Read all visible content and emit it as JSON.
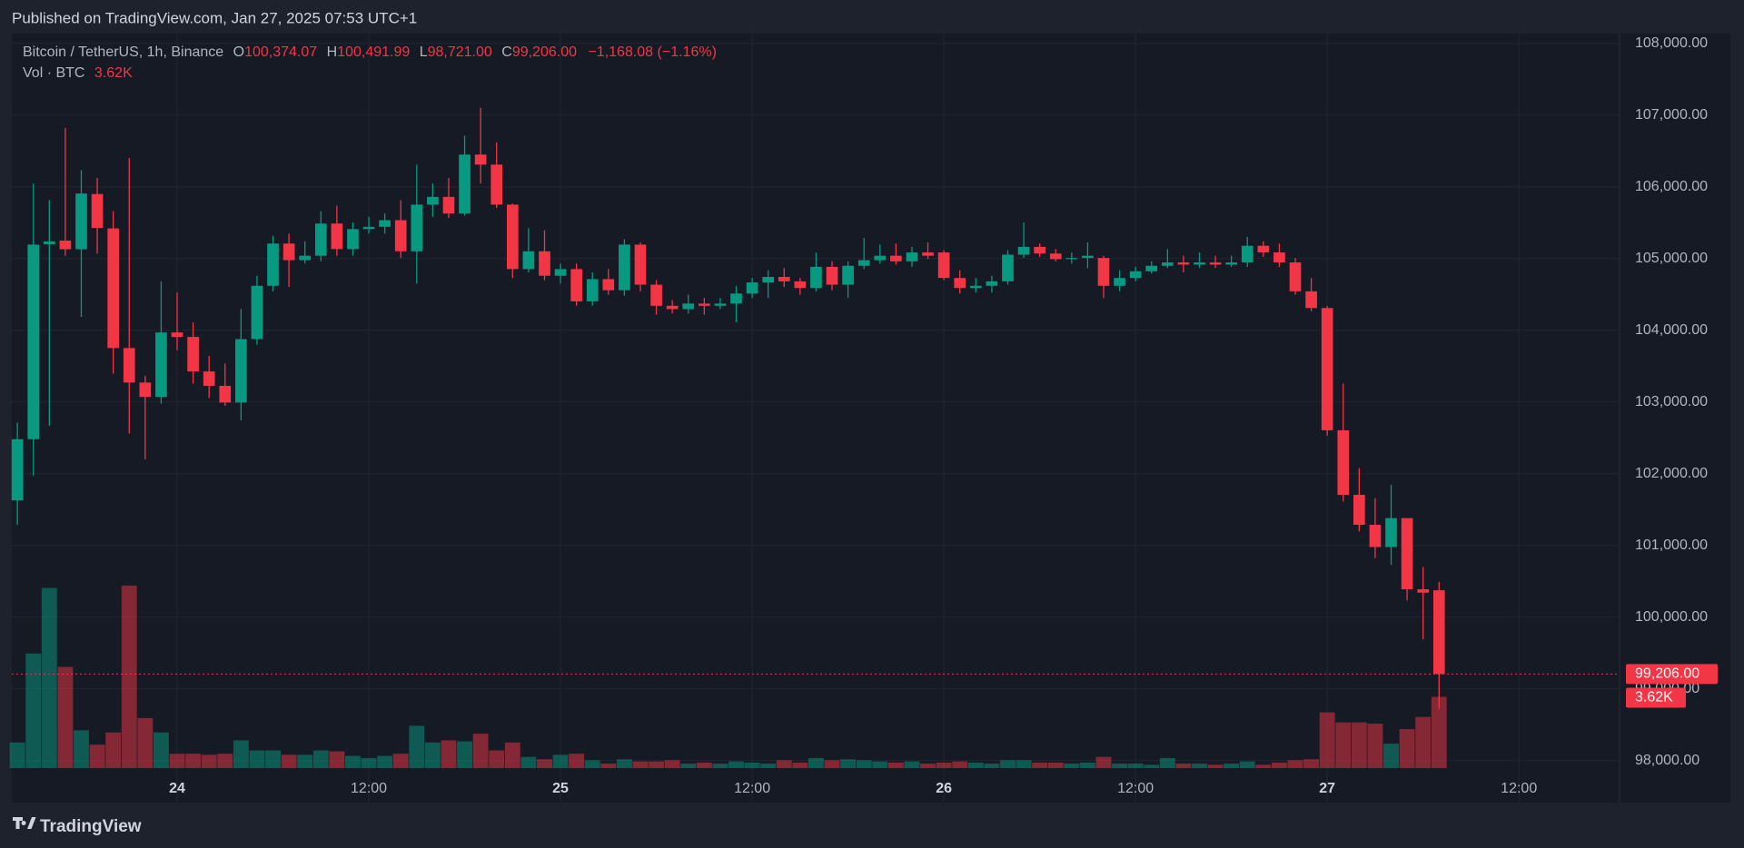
{
  "header": {
    "published": "Published on TradingView.com, Jan 27, 2025 07:53 UTC+1",
    "symbol": "Bitcoin / TetherUS, 1h, Binance",
    "o_key": "O",
    "open": "100,374.07",
    "h_key": "H",
    "high": "100,491.99",
    "l_key": "L",
    "low": "98,721.00",
    "c_key": "C",
    "close": "99,206.00",
    "change": "−1,168.08 (−1.16%)",
    "vol_title": "Vol · BTC"
  },
  "footer": {
    "brand": "TradingView"
  },
  "chart_data": {
    "type": "candlestick",
    "up_color": "#089981",
    "down_color": "#f23645",
    "open": [
      101628,
      102481,
      105200,
      105250,
      105130,
      105900,
      105420,
      103752,
      103271,
      103070,
      103969,
      103907,
      103426,
      103225,
      102992,
      103876,
      104620,
      105209,
      104977,
      105039,
      105488,
      105132,
      105411,
      105442,
      105535,
      105101,
      105752,
      105860,
      105628,
      106450,
      106310,
      105752,
      104853,
      105101,
      104760,
      104853,
      104403,
      104713,
      104558,
      105194,
      104636,
      104341,
      104295,
      104372,
      104341,
      104372,
      104512,
      104667,
      104744,
      104682,
      104589,
      104884,
      104636,
      104899,
      104977,
      105039,
      104961,
      105085,
      105085,
      104729,
      104589,
      104620,
      104682,
      105054,
      105163,
      105070,
      104992,
      105008,
      105008,
      104620,
      104729,
      104822,
      104899,
      104946,
      104915,
      104946,
      104915,
      104946,
      105178,
      105085,
      104946,
      104543,
      104310,
      102605,
      101705,
      101287,
      100977,
      101380,
      100388,
      100374.07
    ],
    "high": [
      102713,
      106047,
      105814,
      106822,
      106233,
      106124,
      105659,
      106403,
      103364,
      104682,
      104527,
      104109,
      103643,
      103535,
      104295,
      104760,
      105318,
      105349,
      105240,
      105659,
      105736,
      105504,
      105581,
      105628,
      105814,
      106310,
      106047,
      106124,
      106713,
      107101,
      106620,
      105767,
      105426,
      105395,
      104930,
      104930,
      104806,
      104853,
      105271,
      105225,
      104698,
      104419,
      104496,
      104450,
      104450,
      104620,
      104729,
      104837,
      104868,
      104729,
      105085,
      104961,
      104961,
      105287,
      105194,
      105209,
      105163,
      105225,
      105116,
      104837,
      104729,
      104760,
      105116,
      105504,
      105209,
      105132,
      105085,
      105225,
      105039,
      104837,
      104884,
      104961,
      105132,
      105039,
      105085,
      105039,
      105039,
      105302,
      105240,
      105209,
      105008,
      104729,
      104341,
      103256,
      102078,
      101659,
      101845,
      101380,
      100698,
      100491.99
    ],
    "low": [
      101287,
      101969,
      102667,
      105039,
      104186,
      105070,
      103395,
      102558,
      102202,
      102977,
      103721,
      103256,
      103054,
      102946,
      102744,
      103798,
      104543,
      104605,
      104930,
      104961,
      105039,
      105039,
      105349,
      105349,
      105008,
      104651,
      105581,
      105566,
      105597,
      106047,
      105705,
      104729,
      104806,
      104698,
      104651,
      104341,
      104341,
      104496,
      104481,
      104543,
      104217,
      104233,
      104233,
      104217,
      104295,
      104109,
      104450,
      104450,
      104605,
      104496,
      104543,
      104558,
      104450,
      104853,
      104930,
      104915,
      104884,
      104992,
      104698,
      104512,
      104527,
      104527,
      104636,
      105008,
      105023,
      104961,
      104930,
      104868,
      104450,
      104543,
      104682,
      104791,
      104868,
      104806,
      104868,
      104868,
      104884,
      104884,
      105023,
      104884,
      104496,
      104264,
      102527,
      101612,
      101194,
      100822,
      100729,
      100233,
      99690,
      98721
    ],
    "close": [
      102481,
      105194,
      105240,
      105130,
      105907,
      105426,
      103752,
      103271,
      103070,
      103969,
      103907,
      103426,
      103225,
      102992,
      103876,
      104620,
      105209,
      104977,
      105039,
      105488,
      105132,
      105411,
      105442,
      105535,
      105101,
      105752,
      105860,
      105628,
      106450,
      106310,
      105752,
      104853,
      105101,
      104760,
      104853,
      104403,
      104713,
      104558,
      105194,
      104636,
      104341,
      104295,
      104372,
      104341,
      104372,
      104512,
      104667,
      104744,
      104682,
      104589,
      104884,
      104636,
      104899,
      104977,
      105039,
      104961,
      105085,
      105039,
      104729,
      104589,
      104620,
      104682,
      105054,
      105163,
      105070,
      104992,
      105008,
      105039,
      104620,
      104729,
      104822,
      104899,
      104946,
      104915,
      104946,
      104915,
      104946,
      105178,
      105085,
      104946,
      104543,
      104310,
      102605,
      101705,
      101287,
      100977,
      101380,
      100388,
      100341,
      99206
    ],
    "volume": [
      1300,
      5820,
      9150,
      5140,
      1920,
      1190,
      1810,
      9270,
      2540,
      1810,
      730,
      730,
      680,
      730,
      1410,
      900,
      900,
      680,
      680,
      900,
      850,
      620,
      510,
      620,
      730,
      2150,
      1300,
      1410,
      1360,
      1750,
      900,
      1300,
      570,
      450,
      680,
      730,
      400,
      230,
      450,
      340,
      340,
      400,
      230,
      280,
      230,
      340,
      280,
      230,
      400,
      280,
      510,
      400,
      450,
      400,
      340,
      280,
      340,
      230,
      280,
      340,
      280,
      230,
      400,
      400,
      280,
      280,
      230,
      280,
      570,
      230,
      230,
      170,
      510,
      230,
      230,
      170,
      230,
      340,
      170,
      280,
      400,
      450,
      2830,
      2320,
      2320,
      2260,
      1240,
      1980,
      2600,
      3620
    ],
    "volume_label": "3.62K",
    "last_price_label": "99,206.00",
    "ylim": [
      97413,
      108137
    ],
    "yticks": [
      {
        "value": 98000,
        "label": "98,000.00"
      },
      {
        "value": 99000,
        "label": "99,000.00"
      },
      {
        "value": 100000,
        "label": "100,000.00"
      },
      {
        "value": 101000,
        "label": "101,000.00"
      },
      {
        "value": 102000,
        "label": "102,000.00"
      },
      {
        "value": 103000,
        "label": "103,000.00"
      },
      {
        "value": 104000,
        "label": "104,000.00"
      },
      {
        "value": 105000,
        "label": "105,000.00"
      },
      {
        "value": 106000,
        "label": "106,000.00"
      },
      {
        "value": 107000,
        "label": "107,000.00"
      },
      {
        "value": 108000,
        "label": "108,000.00"
      }
    ],
    "xlim": [
      -0.35,
      100.3
    ],
    "xticks": [
      {
        "value": 10,
        "label": "24"
      },
      {
        "value": 22,
        "label": "12:00"
      },
      {
        "value": 34,
        "label": "25"
      },
      {
        "value": 46,
        "label": "12:00"
      },
      {
        "value": 58,
        "label": "26"
      },
      {
        "value": 70,
        "label": "12:00"
      },
      {
        "value": 82,
        "label": "27"
      },
      {
        "value": 94,
        "label": "12:00"
      }
    ],
    "grid": true
  }
}
